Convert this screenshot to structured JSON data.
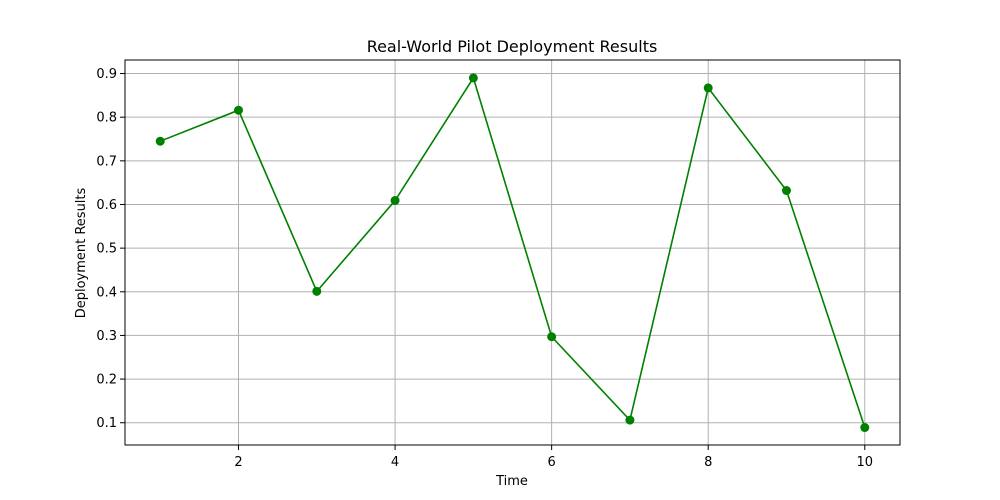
{
  "chart_data": {
    "type": "line",
    "title": "Real-World Pilot Deployment Results",
    "xlabel": "Time",
    "ylabel": "Deployment Results",
    "x": [
      1,
      2,
      3,
      4,
      5,
      6,
      7,
      8,
      9,
      10
    ],
    "series": [
      {
        "values": [
          0.745,
          0.816,
          0.401,
          0.609,
          0.89,
          0.297,
          0.106,
          0.867,
          0.632,
          0.089
        ],
        "color": "#008000",
        "marker": "circle"
      }
    ],
    "xlim": [
      0.55,
      10.45
    ],
    "ylim": [
      0.049,
      0.931
    ],
    "xticks": [
      2,
      4,
      6,
      8,
      10
    ],
    "yticks": [
      0.1,
      0.2,
      0.3,
      0.4,
      0.5,
      0.6,
      0.7,
      0.8,
      0.9
    ],
    "xtick_labels": [
      "2",
      "4",
      "6",
      "8",
      "10"
    ],
    "ytick_labels": [
      "0.1",
      "0.2",
      "0.3",
      "0.4",
      "0.5",
      "0.6",
      "0.7",
      "0.8",
      "0.9"
    ],
    "grid": true,
    "legend": "none"
  }
}
